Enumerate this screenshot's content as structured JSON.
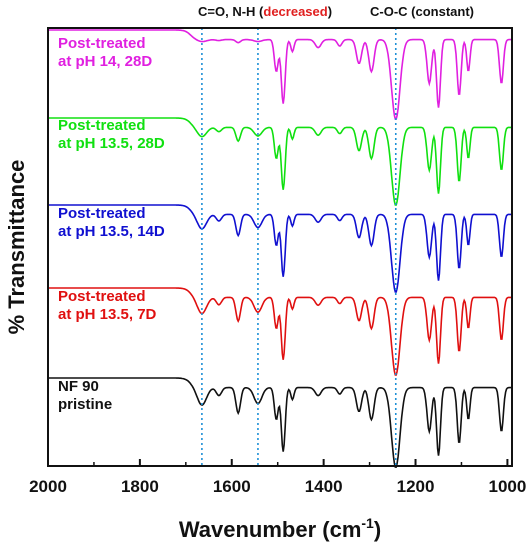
{
  "chart_data": {
    "type": "line",
    "xlabel_main": "Wavenumber (cm",
    "xlabel_sup": "-1",
    "xlabel_close": ")",
    "ylabel": "% Transmittance",
    "xlim": [
      2000,
      990
    ],
    "x_reversed": true,
    "x_ticks": [
      2000,
      1800,
      1600,
      1400,
      1200,
      1000
    ],
    "grid": false,
    "annotations": {
      "left_prefix": "C=O, N-H (",
      "left_emph": "decreased",
      "left_suffix": ")",
      "left_emph_color": "#e02020",
      "right": "C-O-C (constant)"
    },
    "reference_lines": [
      1665,
      1543,
      1243
    ],
    "peaks": [
      {
        "x": 1665,
        "w": 14,
        "d": 0.22
      },
      {
        "x": 1628,
        "w": 8,
        "d": 0.1
      },
      {
        "x": 1586,
        "w": 7,
        "d": 0.32
      },
      {
        "x": 1543,
        "w": 12,
        "d": 0.2
      },
      {
        "x": 1503,
        "w": 6,
        "d": 0.4
      },
      {
        "x": 1488,
        "w": 6,
        "d": 0.8
      },
      {
        "x": 1468,
        "w": 5,
        "d": 0.15
      },
      {
        "x": 1412,
        "w": 9,
        "d": 0.1
      },
      {
        "x": 1365,
        "w": 7,
        "d": 0.08
      },
      {
        "x": 1323,
        "w": 8,
        "d": 0.3
      },
      {
        "x": 1296,
        "w": 8,
        "d": 0.4
      },
      {
        "x": 1243,
        "w": 13,
        "d": 1.0
      },
      {
        "x": 1170,
        "w": 7,
        "d": 0.55
      },
      {
        "x": 1150,
        "w": 6,
        "d": 0.85
      },
      {
        "x": 1105,
        "w": 6,
        "d": 0.7
      },
      {
        "x": 1085,
        "w": 5,
        "d": 0.4
      },
      {
        "x": 1013,
        "w": 6,
        "d": 0.55
      }
    ],
    "series": [
      {
        "name": "Post-treated at pH 14, 28D",
        "label_lines": [
          "Post-treated",
          "at pH 14, 28D"
        ],
        "color": "#e020e0",
        "amide_factor": 0.12
      },
      {
        "name": "Post-treated at pH 13.5, 28D",
        "label_lines": [
          "Post-treated",
          "at pH 13.5, 28D"
        ],
        "color": "#10e010",
        "amide_factor": 0.55
      },
      {
        "name": "Post-treated at pH 13.5, 14D",
        "label_lines": [
          "Post-treated",
          "at pH 13.5, 14D"
        ],
        "color": "#1010d0",
        "amide_factor": 0.85
      },
      {
        "name": "Post-treated at pH 13.5, 7D",
        "label_lines": [
          "Post-treated",
          "at pH 13.5, 7D"
        ],
        "color": "#e01010",
        "amide_factor": 0.95
      },
      {
        "name": "NF 90 pristine",
        "label_lines": [
          "NF 90",
          "pristine"
        ],
        "color": "#111111",
        "amide_factor": 1.0
      }
    ]
  }
}
